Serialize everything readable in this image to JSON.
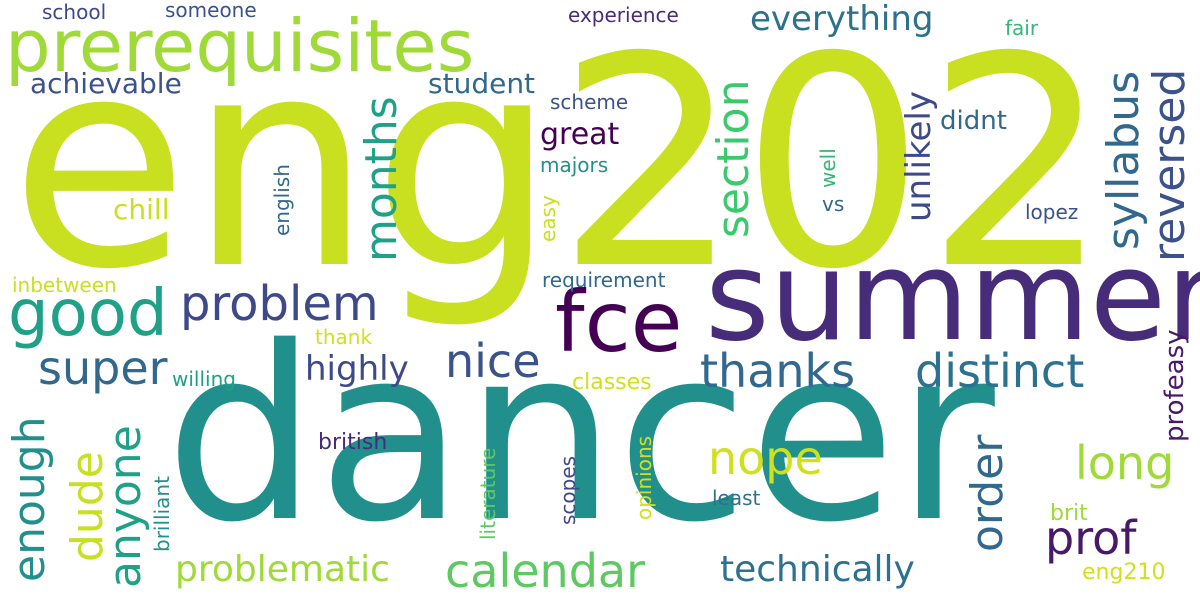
{
  "words": [
    {
      "text": "eng202",
      "color": "#c8e020",
      "size": 290
    },
    {
      "text": "dancer",
      "color": "#21908d",
      "size": 240
    },
    {
      "text": "summer",
      "color": "#472c7a",
      "size": 124
    },
    {
      "text": "prerequisites",
      "color": "#a0da39",
      "size": 72
    },
    {
      "text": "fce",
      "color": "#440154",
      "size": 84
    },
    {
      "text": "good",
      "color": "#1fa187",
      "size": 64
    },
    {
      "text": "problem",
      "color": "#3e4989",
      "size": 48
    },
    {
      "text": "super",
      "color": "#31688e",
      "size": 46
    },
    {
      "text": "nice",
      "color": "#3b528b",
      "size": 46
    },
    {
      "text": "thanks",
      "color": "#31688e",
      "size": 46
    },
    {
      "text": "distinct",
      "color": "#2c728e",
      "size": 46
    },
    {
      "text": "calendar",
      "color": "#5ec962",
      "size": 46
    },
    {
      "text": "problematic",
      "color": "#a0da39",
      "size": 36
    },
    {
      "text": "technically",
      "color": "#2c728e",
      "size": 36
    },
    {
      "text": "nope",
      "color": "#d0e11c",
      "size": 46
    },
    {
      "text": "prof",
      "color": "#48186a",
      "size": 46
    },
    {
      "text": "long",
      "color": "#a0da39",
      "size": 46
    },
    {
      "text": "everything",
      "color": "#2c728e",
      "size": 34
    },
    {
      "text": "achievable",
      "color": "#3b528b",
      "size": 28
    },
    {
      "text": "student",
      "color": "#31688e",
      "size": 28
    },
    {
      "text": "highly",
      "color": "#3e4989",
      "size": 34
    },
    {
      "text": "great",
      "color": "#440154",
      "size": 30
    },
    {
      "text": "chill",
      "color": "#c8e020",
      "size": 28
    },
    {
      "text": "didnt",
      "color": "#31688e",
      "size": 26
    },
    {
      "text": "school",
      "color": "#3e4989",
      "size": 20
    },
    {
      "text": "someone",
      "color": "#3b528b",
      "size": 20
    },
    {
      "text": "experience",
      "color": "#472c7a",
      "size": 20
    },
    {
      "text": "fair",
      "color": "#35b779",
      "size": 20
    },
    {
      "text": "scheme",
      "color": "#3b528b",
      "size": 20
    },
    {
      "text": "majors",
      "color": "#21908d",
      "size": 20
    },
    {
      "text": "lopez",
      "color": "#3b528b",
      "size": 20
    },
    {
      "text": "vs",
      "color": "#31688e",
      "size": 20
    },
    {
      "text": "inbetween",
      "color": "#c8e020",
      "size": 20
    },
    {
      "text": "requirement",
      "color": "#31688e",
      "size": 20
    },
    {
      "text": "willing",
      "color": "#1fa187",
      "size": 20
    },
    {
      "text": "thank",
      "color": "#d0e11c",
      "size": 20
    },
    {
      "text": "classes",
      "color": "#d0e11c",
      "size": 22
    },
    {
      "text": "british",
      "color": "#472c7a",
      "size": 22
    },
    {
      "text": "least",
      "color": "#2c728e",
      "size": 20
    },
    {
      "text": "brit",
      "color": "#a0da39",
      "size": 22
    },
    {
      "text": "eng210",
      "color": "#d0e11c",
      "size": 22
    },
    {
      "text": "months",
      "color": "#1fa187",
      "size": 44
    },
    {
      "text": "section",
      "color": "#3ac96b",
      "size": 44
    },
    {
      "text": "syllabus",
      "color": "#31688e",
      "size": 44
    },
    {
      "text": "reversed",
      "color": "#3b528b",
      "size": 44
    },
    {
      "text": "unlikely",
      "color": "#3e4989",
      "size": 34
    },
    {
      "text": "order",
      "color": "#31688e",
      "size": 44
    },
    {
      "text": "enough",
      "color": "#21908d",
      "size": 44
    },
    {
      "text": "dude",
      "color": "#c8e020",
      "size": 44
    },
    {
      "text": "anyone",
      "color": "#1fa187",
      "size": 44
    },
    {
      "text": "english",
      "color": "#31688e",
      "size": 20
    },
    {
      "text": "easy",
      "color": "#c8e020",
      "size": 20
    },
    {
      "text": "well",
      "color": "#35b779",
      "size": 20
    },
    {
      "text": "profeasy",
      "color": "#48186a",
      "size": 26
    },
    {
      "text": "brilliant",
      "color": "#21908d",
      "size": 20
    },
    {
      "text": "literature",
      "color": "#5ec962",
      "size": 20
    },
    {
      "text": "scopes",
      "color": "#3e4989",
      "size": 20
    },
    {
      "text": "opinions",
      "color": "#d0e11c",
      "size": 20
    }
  ]
}
